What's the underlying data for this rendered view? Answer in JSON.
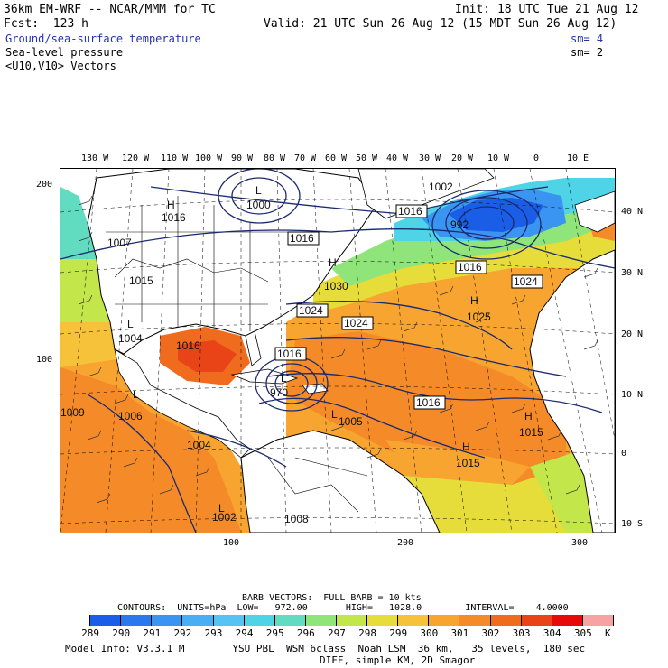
{
  "header": {
    "model_line": "36km EM-WRF -- NCAR/MMM for TC",
    "init": "Init: 18 UTC Tue 21 Aug 12",
    "fcst": "Fcst:  123 h",
    "valid": "Valid: 21 UTC Sun 26 Aug 12 (15 MDT Sun 26 Aug 12)",
    "field1": "Ground/sea-surface temperature",
    "field1_sm": "sm= 4",
    "field2": "Sea-level pressure",
    "field2_sm": "sm= 2",
    "field3": "<U10,V10> Vectors"
  },
  "top_lon_labels": [
    "130 W",
    "120 W",
    "110 W",
    "100 W",
    "90 W",
    "80 W",
    "70 W",
    "60 W",
    "50 W",
    "40 W",
    "30 W",
    "20 W",
    "10 W",
    "0",
    "10 E"
  ],
  "right_lat_labels": [
    "40 N",
    "30 N",
    "20 N",
    "10 N",
    "0",
    "10 S"
  ],
  "left_axis": [
    "200",
    "100"
  ],
  "bottom_axis": [
    "100",
    "200",
    "300"
  ],
  "pressure_labels": {
    "H": [
      "H",
      "H",
      "H",
      "H",
      "H"
    ],
    "L": [
      "L",
      "L",
      "L",
      "L",
      "L",
      "L"
    ],
    "values": [
      "1016",
      "1000",
      "1016",
      "1016",
      "1002",
      "992",
      "1016",
      "1024",
      "1030",
      "1024",
      "1024",
      "1025",
      "1007",
      "1015",
      "1004",
      "1016",
      "1016",
      "1016",
      "970",
      "1005",
      "1006",
      "1009",
      "1004",
      "1015",
      "1015",
      "1002",
      "1008"
    ]
  },
  "barb_info": {
    "line1": "BARB VECTORS:  FULL BARB = 10 kts",
    "contours": "CONTOURS:  UNITS=hPa  LOW=   972.00       HIGH=   1028.0        INTERVAL=    4.0000"
  },
  "legend": {
    "labels": [
      "289",
      "290",
      "291",
      "292",
      "293",
      "294",
      "295",
      "296",
      "297",
      "298",
      "299",
      "300",
      "301",
      "302",
      "303",
      "304",
      "305",
      "K"
    ],
    "colors": [
      "#ffffff",
      "#1a5ee8",
      "#2a78ee",
      "#3a95f2",
      "#4aaef5",
      "#55c4f5",
      "#4fd3e6",
      "#62dcc0",
      "#8fe47a",
      "#c3e64a",
      "#e6dc3a",
      "#f6c23a",
      "#f7a431",
      "#f58a28",
      "#ef6b1e",
      "#e84418",
      "#e80a0a",
      "#f7a3a3"
    ]
  },
  "footer": {
    "line1": "Model Info: V3.3.1 M        YSU PBL  WSM 6class  Noah LSM  36 km,   35 levels,  180 sec",
    "line2": "DIFF, simple KM, 2D Smagor"
  }
}
